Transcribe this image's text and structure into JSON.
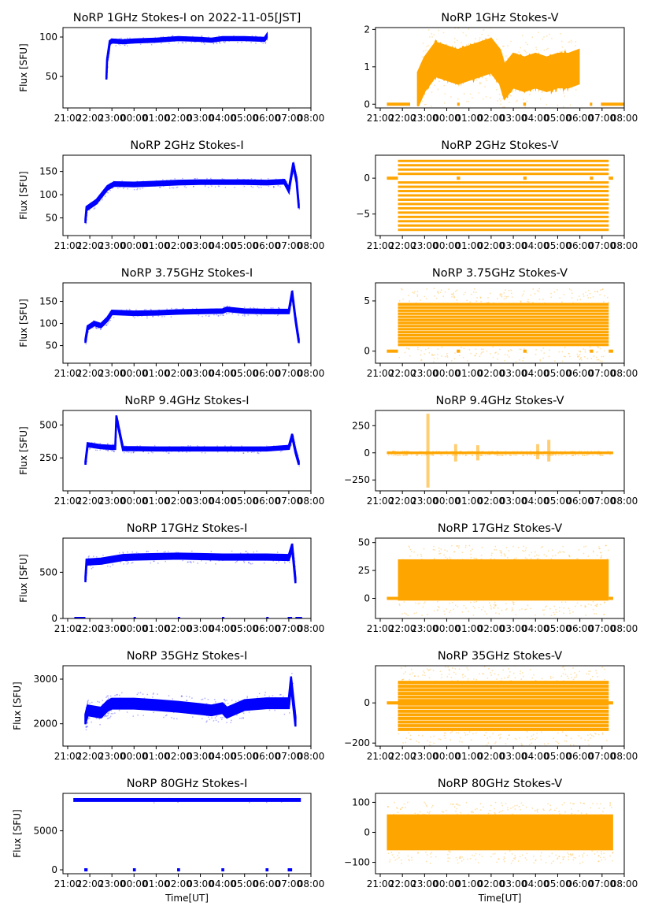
{
  "figure": {
    "xlabel": "Time[UT]",
    "ylabel": "Flux [SFU]",
    "x_ticks": [
      "21:00",
      "22:00",
      "23:00",
      "00:00",
      "01:00",
      "02:00",
      "03:00",
      "04:00",
      "05:00",
      "06:00",
      "07:00",
      "08:00"
    ],
    "colors": {
      "stokes_i": "#0000ff",
      "stokes_v": "#ffa500"
    }
  },
  "chart_data": [
    {
      "type": "scatter",
      "panel": "1GHz-I",
      "color": "#0000ff",
      "title": "NoRP 1GHz Stokes-I on 2022-11-05[JST]",
      "xlabel": "",
      "ylabel": "Flux [SFU]",
      "x_ticks": [
        "21:00",
        "22:00",
        "23:00",
        "00:00",
        "01:00",
        "02:00",
        "03:00",
        "04:00",
        "05:00",
        "06:00",
        "07:00",
        "08:00"
      ],
      "xlim_hours": [
        -3,
        8
      ],
      "ylim": [
        10,
        112
      ],
      "y_ticks": [
        50,
        100
      ],
      "series": [
        {
          "name": "Stokes-I",
          "x_hours": [
            -1.25,
            -1.22,
            -1.1,
            -1.0,
            -0.5,
            0,
            1,
            2,
            3,
            3.5,
            4,
            5,
            5.9,
            6.0
          ],
          "y": [
            48,
            70,
            93,
            95,
            94,
            95,
            96,
            98,
            97,
            96,
            98,
            98,
            97,
            101
          ],
          "spread": 2
        }
      ]
    },
    {
      "type": "scatter",
      "panel": "1GHz-V",
      "color": "#ffa500",
      "title": "NoRP 1GHz Stokes-V",
      "xlabel": "",
      "ylabel": "",
      "x_ticks": [
        "21:00",
        "22:00",
        "23:00",
        "00:00",
        "01:00",
        "02:00",
        "03:00",
        "04:00",
        "05:00",
        "06:00",
        "07:00",
        "08:00"
      ],
      "xlim_hours": [
        -3,
        8
      ],
      "ylim": [
        -0.1,
        2.05
      ],
      "y_ticks": [
        0,
        1,
        2
      ],
      "series": [
        {
          "name": "Stokes-V",
          "x_hours": [
            -1.3,
            -1.0,
            -0.5,
            0,
            0.5,
            1,
            1.5,
            2,
            2.4,
            2.6,
            3,
            3.5,
            4,
            4.5,
            5,
            5.5,
            5.95
          ],
          "y": [
            0.4,
            0.8,
            1.2,
            1.1,
            1.0,
            1.1,
            1.2,
            1.3,
            1.0,
            0.6,
            0.9,
            0.8,
            0.9,
            0.8,
            0.9,
            0.9,
            1.0
          ],
          "spread": 0.45
        }
      ],
      "zero_segments_hours": [
        [
          -2.7,
          -1.65
        ],
        [
          0.47,
          0.58
        ],
        [
          3.45,
          3.57
        ],
        [
          6.45,
          6.52
        ],
        [
          6.95,
          8.5
        ]
      ]
    },
    {
      "type": "scatter",
      "panel": "2GHz-I",
      "color": "#0000ff",
      "title": "NoRP 2GHz Stokes-I",
      "xlabel": "",
      "ylabel": "Flux [SFU]",
      "x_ticks": [
        "21:00",
        "22:00",
        "23:00",
        "00:00",
        "01:00",
        "02:00",
        "03:00",
        "04:00",
        "05:00",
        "06:00",
        "07:00",
        "08:00"
      ],
      "xlim_hours": [
        -3,
        8
      ],
      "ylim": [
        12,
        185
      ],
      "y_ticks": [
        50,
        100,
        150
      ],
      "series": [
        {
          "name": "Stokes-I",
          "x_hours": [
            -2.2,
            -2.15,
            -1.7,
            -1.2,
            -0.9,
            0,
            1,
            2,
            3,
            4,
            5,
            6,
            6.8,
            7.0,
            7.2,
            7.35,
            7.45
          ],
          "y": [
            43,
            70,
            85,
            115,
            123,
            122,
            124,
            126,
            127,
            127,
            127,
            126,
            128,
            110,
            165,
            130,
            75
          ],
          "spread": 4
        }
      ]
    },
    {
      "type": "scatter",
      "panel": "2GHz-V",
      "color": "#ffa500",
      "title": "NoRP 2GHz Stokes-V",
      "xlabel": "",
      "ylabel": "",
      "x_ticks": [
        "21:00",
        "22:00",
        "23:00",
        "00:00",
        "01:00",
        "02:00",
        "03:00",
        "04:00",
        "05:00",
        "06:00",
        "07:00",
        "08:00"
      ],
      "xlim_hours": [
        -3,
        8
      ],
      "ylim": [
        -8,
        3.2
      ],
      "y_ticks": [
        -5,
        0
      ],
      "quantized_levels": [
        2.4,
        1.8,
        1.2,
        0.6,
        0,
        -0.6,
        -1.2,
        -1.8,
        -2.4,
        -3.0,
        -3.6,
        -4.2,
        -4.8,
        -5.4,
        -6.0,
        -6.6,
        -7.2
      ],
      "series": [
        {
          "name": "Stokes-V",
          "x_hours": [
            -2.2,
            7.3
          ],
          "y_range": [
            -7.2,
            2.4
          ]
        }
      ],
      "zero_segments_hours": [
        [
          -2.7,
          -2.2
        ],
        [
          0.45,
          0.6
        ],
        [
          3.45,
          3.6
        ],
        [
          6.45,
          6.6
        ],
        [
          7.3,
          7.5
        ]
      ]
    },
    {
      "type": "scatter",
      "panel": "3.75GHz-I",
      "color": "#0000ff",
      "title": "NoRP 3.75GHz Stokes-I",
      "xlabel": "",
      "ylabel": "Flux [SFU]",
      "x_ticks": [
        "21:00",
        "22:00",
        "23:00",
        "00:00",
        "01:00",
        "02:00",
        "03:00",
        "04:00",
        "05:00",
        "06:00",
        "07:00",
        "08:00"
      ],
      "xlim_hours": [
        -3,
        8
      ],
      "ylim": [
        10,
        192
      ],
      "y_ticks": [
        50,
        100,
        150
      ],
      "series": [
        {
          "name": "Stokes-I",
          "x_hours": [
            -2.2,
            -2.1,
            -1.8,
            -1.5,
            -1.2,
            -1.0,
            0,
            1,
            2,
            3,
            4,
            4.2,
            5,
            6,
            7.0,
            7.15,
            7.3,
            7.45
          ],
          "y": [
            60,
            90,
            100,
            95,
            110,
            125,
            123,
            124,
            126,
            127,
            128,
            132,
            128,
            127,
            127,
            170,
            110,
            60
          ],
          "spread": 4
        }
      ]
    },
    {
      "type": "scatter",
      "panel": "3.75GHz-V",
      "color": "#ffa500",
      "title": "NoRP 3.75GHz Stokes-V",
      "xlabel": "",
      "ylabel": "",
      "x_ticks": [
        "21:00",
        "22:00",
        "23:00",
        "00:00",
        "01:00",
        "02:00",
        "03:00",
        "04:00",
        "05:00",
        "06:00",
        "07:00",
        "08:00"
      ],
      "xlim_hours": [
        -3,
        8
      ],
      "ylim": [
        -1.2,
        6.8
      ],
      "y_ticks": [
        0,
        5
      ],
      "series": [
        {
          "name": "Stokes-V",
          "x_hours": [
            -2.2,
            7.3
          ],
          "y_range": [
            0.5,
            4.8
          ]
        }
      ],
      "zero_segments_hours": [
        [
          -2.7,
          -2.2
        ],
        [
          0.45,
          0.6
        ],
        [
          3.45,
          3.6
        ],
        [
          6.45,
          6.6
        ],
        [
          7.3,
          7.5
        ]
      ]
    },
    {
      "type": "scatter",
      "panel": "9.4GHz-I",
      "color": "#0000ff",
      "title": "NoRP 9.4GHz Stokes-I",
      "xlabel": "",
      "ylabel": "Flux [SFU]",
      "x_ticks": [
        "21:00",
        "22:00",
        "23:00",
        "00:00",
        "01:00",
        "02:00",
        "03:00",
        "04:00",
        "05:00",
        "06:00",
        "07:00",
        "08:00"
      ],
      "xlim_hours": [
        -3,
        8
      ],
      "ylim": [
        0,
        610
      ],
      "y_ticks": [
        250,
        500
      ],
      "series": [
        {
          "name": "Stokes-I",
          "x_hours": [
            -2.2,
            -2.1,
            -1.5,
            -1.0,
            -0.85,
            -0.8,
            -0.5,
            0,
            1,
            2,
            3,
            4,
            5,
            6,
            7.0,
            7.15,
            7.3,
            7.45
          ],
          "y": [
            210,
            350,
            335,
            330,
            330,
            560,
            320,
            320,
            318,
            318,
            318,
            318,
            318,
            318,
            330,
            420,
            300,
            210
          ],
          "spread": 12
        }
      ]
    },
    {
      "type": "scatter",
      "panel": "9.4GHz-V",
      "color": "#ffa500",
      "title": "NoRP 9.4GHz Stokes-V",
      "xlabel": "",
      "ylabel": "",
      "x_ticks": [
        "21:00",
        "22:00",
        "23:00",
        "00:00",
        "01:00",
        "02:00",
        "03:00",
        "04:00",
        "05:00",
        "06:00",
        "07:00",
        "08:00"
      ],
      "xlim_hours": [
        -3,
        8
      ],
      "ylim": [
        -350,
        390
      ],
      "y_ticks": [
        -250,
        0,
        250
      ],
      "series": [
        {
          "name": "Stokes-V",
          "x_hours": [
            -2.7,
            7.5
          ],
          "y_range": [
            -12,
            12
          ]
        }
      ],
      "spikes": [
        {
          "x_hour": -0.85,
          "lo": -320,
          "hi": 360
        },
        {
          "x_hour": 0.4,
          "lo": -80,
          "hi": 80
        },
        {
          "x_hour": 1.4,
          "lo": -70,
          "hi": 70
        },
        {
          "x_hour": 4.1,
          "lo": -60,
          "hi": 80
        },
        {
          "x_hour": 4.6,
          "lo": -80,
          "hi": 120
        }
      ]
    },
    {
      "type": "scatter",
      "panel": "17GHz-I",
      "color": "#0000ff",
      "title": "NoRP 17GHz Stokes-I",
      "xlabel": "",
      "ylabel": "Flux [SFU]",
      "x_ticks": [
        "21:00",
        "22:00",
        "23:00",
        "00:00",
        "01:00",
        "02:00",
        "03:00",
        "04:00",
        "05:00",
        "06:00",
        "07:00",
        "08:00"
      ],
      "xlim_hours": [
        -3,
        8
      ],
      "ylim": [
        0,
        870
      ],
      "y_ticks": [
        0,
        500
      ],
      "series": [
        {
          "name": "Stokes-I",
          "x_hours": [
            -2.2,
            -2.15,
            -1.5,
            -0.5,
            0,
            1,
            2,
            3,
            4,
            5,
            6,
            7.0,
            7.15,
            7.3
          ],
          "y": [
            420,
            610,
            620,
            660,
            665,
            670,
            675,
            670,
            665,
            665,
            665,
            660,
            780,
            410
          ],
          "spread": 28
        }
      ],
      "zero_segments_hours": [
        [
          -2.7,
          -2.2
        ],
        [
          -0.02,
          0.05
        ],
        [
          1.98,
          2.05
        ],
        [
          3.98,
          4.05
        ],
        [
          5.98,
          6.05
        ],
        [
          6.95,
          7.15
        ],
        [
          7.3,
          7.6
        ]
      ]
    },
    {
      "type": "scatter",
      "panel": "17GHz-V",
      "color": "#ffa500",
      "title": "NoRP 17GHz Stokes-V",
      "xlabel": "",
      "ylabel": "",
      "x_ticks": [
        "21:00",
        "22:00",
        "23:00",
        "00:00",
        "01:00",
        "02:00",
        "03:00",
        "04:00",
        "05:00",
        "06:00",
        "07:00",
        "08:00"
      ],
      "xlim_hours": [
        -3,
        8
      ],
      "ylim": [
        -18,
        54
      ],
      "y_ticks": [
        0,
        25,
        50
      ],
      "series": [
        {
          "name": "Stokes-V",
          "x_hours": [
            -2.2,
            7.3
          ],
          "y_range": [
            -2,
            35
          ]
        }
      ],
      "zero_segments_hours": [
        [
          -2.7,
          -2.2
        ],
        [
          7.3,
          7.5
        ]
      ]
    },
    {
      "type": "scatter",
      "panel": "35GHz-I",
      "color": "#0000ff",
      "title": "NoRP 35GHz Stokes-I",
      "xlabel": "",
      "ylabel": "Flux [SFU]",
      "x_ticks": [
        "21:00",
        "22:00",
        "23:00",
        "00:00",
        "01:00",
        "02:00",
        "03:00",
        "04:00",
        "05:00",
        "06:00",
        "07:00",
        "08:00"
      ],
      "xlim_hours": [
        -3,
        8
      ],
      "ylim": [
        1500,
        3300
      ],
      "y_ticks": [
        2000,
        3000
      ],
      "series": [
        {
          "name": "Stokes-I",
          "x_hours": [
            -2.2,
            -2.1,
            -1.5,
            -1.2,
            -1.0,
            0,
            1,
            2,
            3,
            3.5,
            4,
            4.2,
            5,
            6,
            7.0,
            7.1,
            7.3
          ],
          "y": [
            2100,
            2300,
            2250,
            2400,
            2450,
            2450,
            2420,
            2380,
            2330,
            2300,
            2350,
            2250,
            2420,
            2460,
            2460,
            2950,
            2050
          ],
          "spread": 110
        }
      ]
    },
    {
      "type": "scatter",
      "panel": "35GHz-V",
      "color": "#ffa500",
      "title": "NoRP 35GHz Stokes-V",
      "xlabel": "",
      "ylabel": "",
      "x_ticks": [
        "21:00",
        "22:00",
        "23:00",
        "00:00",
        "01:00",
        "02:00",
        "03:00",
        "04:00",
        "05:00",
        "06:00",
        "07:00",
        "08:00"
      ],
      "xlim_hours": [
        -3,
        8
      ],
      "ylim": [
        -215,
        185
      ],
      "y_ticks": [
        -200,
        0
      ],
      "series": [
        {
          "name": "Stokes-V",
          "x_hours": [
            -2.2,
            7.3
          ],
          "y_range": [
            -140,
            110
          ]
        }
      ],
      "zero_segments_hours": [
        [
          -2.7,
          7.5
        ]
      ]
    },
    {
      "type": "scatter",
      "panel": "80GHz-I",
      "color": "#0000ff",
      "title": "NoRP 80GHz Stokes-I",
      "xlabel": "Time[UT]",
      "ylabel": "Flux [SFU]",
      "x_ticks": [
        "21:00",
        "22:00",
        "23:00",
        "00:00",
        "01:00",
        "02:00",
        "03:00",
        "04:00",
        "05:00",
        "06:00",
        "07:00",
        "08:00"
      ],
      "xlim_hours": [
        -3,
        8
      ],
      "ylim": [
        -500,
        9800
      ],
      "y_ticks": [
        0,
        5000
      ],
      "series": [
        {
          "name": "Stokes-I",
          "x_hours": [
            -2.7,
            7.5
          ],
          "y": [
            8950,
            8950
          ],
          "spread": 120
        }
      ],
      "zero_segments_hours": [
        [
          -2.25,
          -2.1
        ],
        [
          -0.05,
          0.08
        ],
        [
          1.95,
          2.08
        ],
        [
          3.95,
          4.08
        ],
        [
          5.95,
          6.08
        ],
        [
          6.95,
          7.15
        ]
      ]
    },
    {
      "type": "scatter",
      "panel": "80GHz-V",
      "color": "#ffa500",
      "title": "NoRP 80GHz Stokes-V",
      "xlabel": "Time[UT]",
      "ylabel": "",
      "x_ticks": [
        "21:00",
        "22:00",
        "23:00",
        "00:00",
        "01:00",
        "02:00",
        "03:00",
        "04:00",
        "05:00",
        "06:00",
        "07:00",
        "08:00"
      ],
      "xlim_hours": [
        -3,
        8
      ],
      "ylim": [
        -138,
        130
      ],
      "y_ticks": [
        -100,
        0,
        100
      ],
      "series": [
        {
          "name": "Stokes-V",
          "x_hours": [
            -2.7,
            7.5
          ],
          "y_range": [
            -60,
            60
          ]
        }
      ]
    }
  ]
}
